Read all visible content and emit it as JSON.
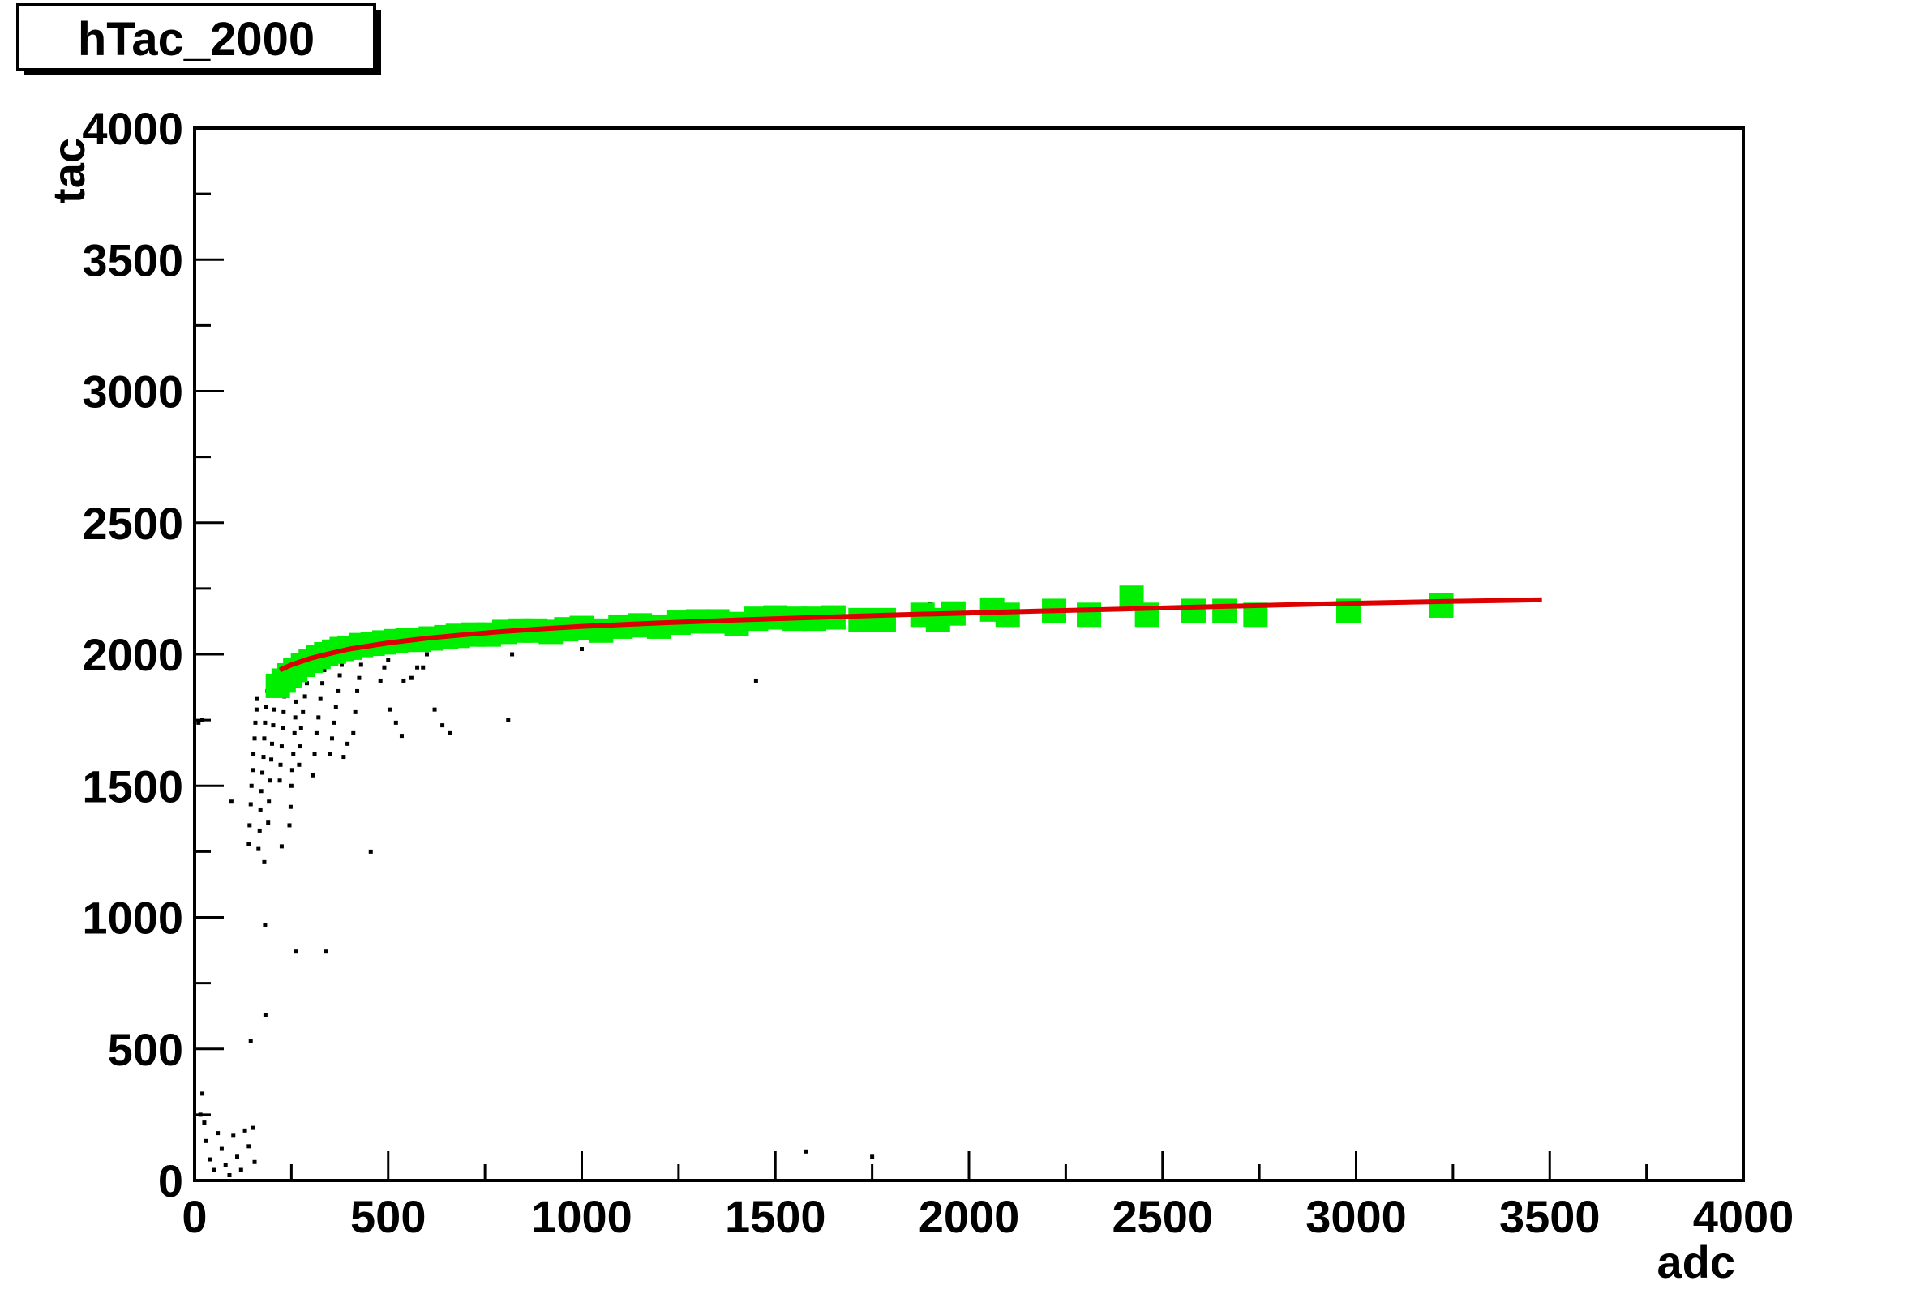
{
  "chart_data": {
    "type": "scatter",
    "title": "hTac_2000",
    "xlabel": "adc",
    "ylabel": "tac",
    "xlim": [
      0,
      4000
    ],
    "ylim": [
      0,
      4000
    ],
    "x_ticks": [
      "0",
      "500",
      "1000",
      "1500",
      "2000",
      "2500",
      "3000",
      "3500",
      "4000"
    ],
    "y_ticks": [
      "0",
      "500",
      "1000",
      "1500",
      "2000",
      "2500",
      "3000",
      "3500",
      "4000"
    ],
    "grid": false,
    "legend": "none",
    "colors": {
      "raw": "#000000",
      "profile": "#00ee00",
      "fit": "#dd0000"
    },
    "series": [
      {
        "kind": "raw-points",
        "points": [
          [
            10,
            1740
          ],
          [
            20,
            1750
          ],
          [
            20,
            330
          ],
          [
            15,
            250
          ],
          [
            25,
            220
          ],
          [
            30,
            150
          ],
          [
            40,
            80
          ],
          [
            50,
            40
          ],
          [
            60,
            180
          ],
          [
            70,
            120
          ],
          [
            80,
            60
          ],
          [
            90,
            20
          ],
          [
            100,
            170
          ],
          [
            110,
            90
          ],
          [
            120,
            40
          ],
          [
            130,
            190
          ],
          [
            140,
            130
          ],
          [
            150,
            200
          ],
          [
            155,
            70
          ],
          [
            95,
            1440
          ],
          [
            145,
            530
          ],
          [
            140,
            1280
          ],
          [
            142,
            1350
          ],
          [
            145,
            1430
          ],
          [
            147,
            1500
          ],
          [
            150,
            1560
          ],
          [
            152,
            1620
          ],
          [
            155,
            1680
          ],
          [
            157,
            1740
          ],
          [
            160,
            1790
          ],
          [
            162,
            1830
          ],
          [
            165,
            1260
          ],
          [
            168,
            1330
          ],
          [
            170,
            1410
          ],
          [
            172,
            1480
          ],
          [
            175,
            1550
          ],
          [
            178,
            1610
          ],
          [
            180,
            1680
          ],
          [
            182,
            1740
          ],
          [
            185,
            1800
          ],
          [
            188,
            1860
          ],
          [
            190,
            1890
          ],
          [
            180,
            1210
          ],
          [
            182,
            970
          ],
          [
            183,
            630
          ],
          [
            190,
            1360
          ],
          [
            192,
            1440
          ],
          [
            195,
            1520
          ],
          [
            198,
            1600
          ],
          [
            200,
            1660
          ],
          [
            203,
            1730
          ],
          [
            205,
            1790
          ],
          [
            208,
            1850
          ],
          [
            210,
            1900
          ],
          [
            220,
            1520
          ],
          [
            222,
            1580
          ],
          [
            225,
            1650
          ],
          [
            228,
            1720
          ],
          [
            230,
            1780
          ],
          [
            232,
            1840
          ],
          [
            235,
            1880
          ],
          [
            225,
            1270
          ],
          [
            245,
            1350
          ],
          [
            248,
            1420
          ],
          [
            250,
            1500
          ],
          [
            252,
            1560
          ],
          [
            255,
            1620
          ],
          [
            258,
            1700
          ],
          [
            260,
            1760
          ],
          [
            262,
            1820
          ],
          [
            265,
            1880
          ],
          [
            268,
            1920
          ],
          [
            262,
            870
          ],
          [
            270,
            1580
          ],
          [
            272,
            1650
          ],
          [
            275,
            1720
          ],
          [
            280,
            1780
          ],
          [
            285,
            1840
          ],
          [
            290,
            1890
          ],
          [
            295,
            1950
          ],
          [
            300,
            1990
          ],
          [
            305,
            1540
          ],
          [
            310,
            1620
          ],
          [
            315,
            1700
          ],
          [
            320,
            1760
          ],
          [
            325,
            1830
          ],
          [
            330,
            1890
          ],
          [
            335,
            1940
          ],
          [
            340,
            1990
          ],
          [
            345,
            2010
          ],
          [
            340,
            870
          ],
          [
            350,
            1620
          ],
          [
            355,
            1680
          ],
          [
            360,
            1740
          ],
          [
            365,
            1800
          ],
          [
            370,
            1860
          ],
          [
            375,
            1920
          ],
          [
            380,
            1960
          ],
          [
            385,
            2000
          ],
          [
            390,
            2030
          ],
          [
            385,
            1610
          ],
          [
            395,
            1660
          ],
          [
            410,
            1700
          ],
          [
            415,
            1780
          ],
          [
            420,
            1860
          ],
          [
            425,
            1910
          ],
          [
            430,
            1960
          ],
          [
            440,
            2000
          ],
          [
            445,
            2040
          ],
          [
            455,
            2060
          ],
          [
            455,
            1250
          ],
          [
            480,
            1900
          ],
          [
            490,
            1950
          ],
          [
            500,
            1980
          ],
          [
            510,
            2020
          ],
          [
            520,
            2050
          ],
          [
            530,
            2070
          ],
          [
            540,
            2060
          ],
          [
            550,
            2040
          ],
          [
            505,
            1790
          ],
          [
            520,
            1740
          ],
          [
            535,
            1690
          ],
          [
            540,
            1900
          ],
          [
            560,
            1910
          ],
          [
            575,
            1950
          ],
          [
            590,
            1950
          ],
          [
            600,
            2000
          ],
          [
            620,
            2030
          ],
          [
            640,
            2050
          ],
          [
            620,
            1790
          ],
          [
            640,
            1730
          ],
          [
            660,
            1700
          ],
          [
            680,
            2040
          ],
          [
            700,
            2060
          ],
          [
            720,
            2080
          ],
          [
            740,
            2050
          ],
          [
            760,
            2070
          ],
          [
            780,
            2100
          ],
          [
            800,
            2090
          ],
          [
            810,
            1750
          ],
          [
            820,
            2000
          ],
          [
            840,
            2110
          ],
          [
            860,
            2090
          ],
          [
            880,
            2120
          ],
          [
            900,
            2100
          ],
          [
            950,
            2080
          ],
          [
            980,
            2060
          ],
          [
            1000,
            2020
          ],
          [
            1050,
            2110
          ],
          [
            1100,
            2120
          ],
          [
            1150,
            2130
          ],
          [
            1200,
            2140
          ],
          [
            1250,
            2120
          ],
          [
            1300,
            2150
          ],
          [
            1350,
            2130
          ],
          [
            1400,
            2150
          ],
          [
            1450,
            1900
          ],
          [
            1460,
            2160
          ],
          [
            1580,
            110
          ],
          [
            1750,
            90
          ],
          [
            1900,
            2190
          ]
        ]
      },
      {
        "kind": "profile-markers",
        "points": [
          [
            215,
            1880
          ],
          [
            230,
            1900
          ],
          [
            245,
            1920
          ],
          [
            260,
            1940
          ],
          [
            280,
            1960
          ],
          [
            300,
            1975
          ],
          [
            320,
            1990
          ],
          [
            340,
            2000
          ],
          [
            360,
            2010
          ],
          [
            380,
            2020
          ],
          [
            400,
            2025
          ],
          [
            430,
            2035
          ],
          [
            460,
            2040
          ],
          [
            490,
            2045
          ],
          [
            520,
            2050
          ],
          [
            550,
            2055
          ],
          [
            580,
            2055
          ],
          [
            610,
            2060
          ],
          [
            650,
            2065
          ],
          [
            680,
            2070
          ],
          [
            720,
            2075
          ],
          [
            760,
            2075
          ],
          [
            800,
            2085
          ],
          [
            840,
            2090
          ],
          [
            880,
            2090
          ],
          [
            920,
            2085
          ],
          [
            960,
            2095
          ],
          [
            1000,
            2100
          ],
          [
            1050,
            2090
          ],
          [
            1100,
            2105
          ],
          [
            1150,
            2110
          ],
          [
            1200,
            2105
          ],
          [
            1250,
            2120
          ],
          [
            1300,
            2125
          ],
          [
            1350,
            2125
          ],
          [
            1400,
            2115
          ],
          [
            1450,
            2135
          ],
          [
            1500,
            2140
          ],
          [
            1550,
            2135
          ],
          [
            1600,
            2135
          ],
          [
            1650,
            2140
          ],
          [
            1720,
            2130
          ],
          [
            1780,
            2130
          ],
          [
            1880,
            2150
          ],
          [
            1920,
            2130
          ],
          [
            1960,
            2155
          ],
          [
            2060,
            2170
          ],
          [
            2100,
            2150
          ],
          [
            2220,
            2165
          ],
          [
            2310,
            2150
          ],
          [
            2420,
            2215
          ],
          [
            2460,
            2150
          ],
          [
            2580,
            2165
          ],
          [
            2660,
            2165
          ],
          [
            2740,
            2150
          ],
          [
            2980,
            2165
          ],
          [
            3220,
            2185
          ]
        ]
      },
      {
        "kind": "fit-curve",
        "points": [
          [
            220,
            1940
          ],
          [
            250,
            1960
          ],
          [
            300,
            1985
          ],
          [
            350,
            2003
          ],
          [
            400,
            2020
          ],
          [
            500,
            2043
          ],
          [
            600,
            2061
          ],
          [
            700,
            2075
          ],
          [
            800,
            2087
          ],
          [
            900,
            2097
          ],
          [
            1000,
            2106
          ],
          [
            1200,
            2119
          ],
          [
            1400,
            2130
          ],
          [
            1600,
            2140
          ],
          [
            1800,
            2149
          ],
          [
            2000,
            2157
          ],
          [
            2200,
            2165
          ],
          [
            2400,
            2172
          ],
          [
            2600,
            2180
          ],
          [
            2800,
            2187
          ],
          [
            3000,
            2194
          ],
          [
            3200,
            2200
          ],
          [
            3400,
            2205
          ],
          [
            3480,
            2207
          ]
        ]
      }
    ]
  }
}
